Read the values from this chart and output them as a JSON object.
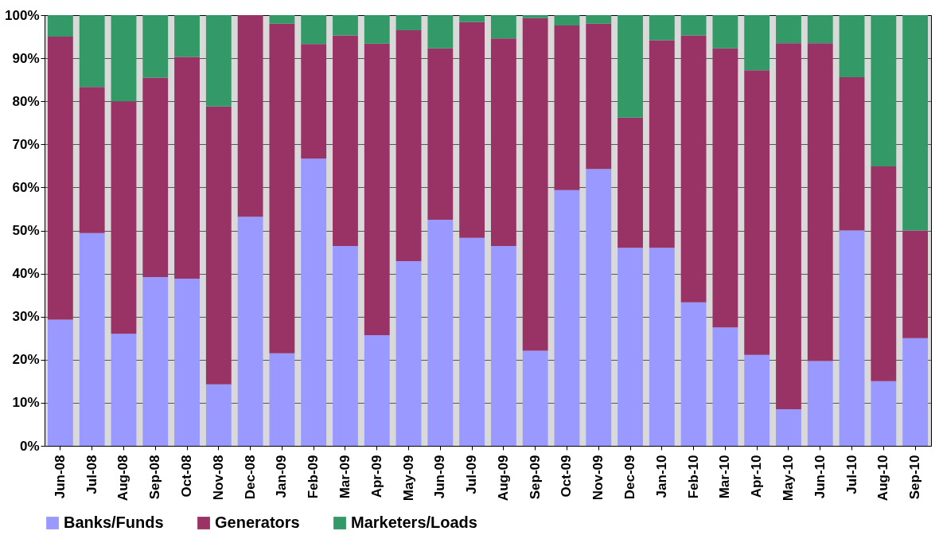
{
  "chart_data": {
    "type": "bar",
    "stacked": true,
    "categories": [
      "Jun-08",
      "Jul-08",
      "Aug-08",
      "Sep-08",
      "Oct-08",
      "Nov-08",
      "Dec-08",
      "Jan-09",
      "Feb-09",
      "Mar-09",
      "Apr-09",
      "May-09",
      "Jun-09",
      "Jul-09",
      "Aug-09",
      "Sep-09",
      "Oct-09",
      "Nov-09",
      "Dec-09",
      "Jan-10",
      "Feb-10",
      "Mar-10",
      "Apr-10",
      "May-10",
      "Jun-10",
      "Jul-10",
      "Aug-10",
      "Sep-10"
    ],
    "series": [
      {
        "name": "Banks/Funds",
        "color": "#9999ff",
        "values": [
          29.3,
          49.4,
          26,
          39.2,
          38.8,
          14.3,
          53.2,
          21.5,
          66.7,
          46.4,
          25.7,
          42.9,
          52.5,
          48.3,
          46.4,
          22.1,
          59.4,
          64.3,
          46,
          46,
          33.3,
          27.5,
          21.1,
          8.5,
          19.7,
          50,
          15,
          25
        ]
      },
      {
        "name": "Generators",
        "color": "#993366",
        "values": [
          65.7,
          33.9,
          54,
          46.3,
          51.5,
          64.5,
          46.8,
          76.5,
          26.6,
          48.9,
          67.7,
          53.6,
          39.8,
          50.1,
          48.2,
          77.2,
          38.2,
          33.7,
          30.2,
          48.2,
          62,
          64.8,
          66.1,
          85,
          73.8,
          35.6,
          49.9,
          25
        ]
      },
      {
        "name": "Marketers/Loads",
        "color": "#339966",
        "values": [
          5,
          16.7,
          20,
          14.5,
          9.7,
          21.2,
          0,
          2,
          6.7,
          4.7,
          6.6,
          3.5,
          7.7,
          1.6,
          5.4,
          0.7,
          2.4,
          2,
          23.8,
          5.8,
          4.7,
          7.7,
          12.8,
          6.5,
          6.5,
          14.4,
          35.1,
          50
        ]
      }
    ],
    "ylim": [
      0,
      100
    ],
    "yticks": [
      {
        "value": 0,
        "label": "0%"
      },
      {
        "value": 10,
        "label": "10%"
      },
      {
        "value": 20,
        "label": "20%"
      },
      {
        "value": 30,
        "label": "30%"
      },
      {
        "value": 40,
        "label": "40%"
      },
      {
        "value": 50,
        "label": "50%"
      },
      {
        "value": 60,
        "label": "60%"
      },
      {
        "value": 70,
        "label": "70%"
      },
      {
        "value": 80,
        "label": "80%"
      },
      {
        "value": 90,
        "label": "90%"
      },
      {
        "value": 100,
        "label": "100%"
      }
    ],
    "grid": "y",
    "legend": "bottom"
  }
}
